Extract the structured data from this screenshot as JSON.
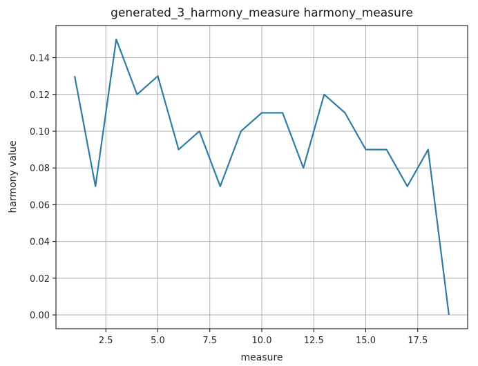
{
  "chart_data": {
    "type": "line",
    "title": "generated_3_harmony_measure harmony_measure",
    "xlabel": "measure",
    "ylabel": "harmony value",
    "x": [
      1,
      2,
      3,
      4,
      5,
      6,
      7,
      8,
      9,
      10,
      11,
      12,
      13,
      14,
      15,
      16,
      17,
      18,
      19
    ],
    "series": [
      {
        "values": [
          0.13,
          0.07,
          0.15,
          0.12,
          0.13,
          0.09,
          0.1,
          0.07,
          0.1,
          0.11,
          0.11,
          0.08,
          0.12,
          0.11,
          0.09,
          0.09,
          0.07,
          0.09,
          0.0
        ],
        "color": "#2e7ca6"
      }
    ],
    "xlim": [
      0.1,
      19.9
    ],
    "ylim": [
      -0.0075,
      0.1575
    ],
    "xticks": [
      2.5,
      5.0,
      7.5,
      10.0,
      12.5,
      15.0,
      17.5
    ],
    "xtick_labels": [
      "2.5",
      "5.0",
      "7.5",
      "10.0",
      "12.5",
      "15.0",
      "17.5"
    ],
    "yticks": [
      0.0,
      0.02,
      0.04,
      0.06,
      0.08,
      0.1,
      0.12,
      0.14
    ],
    "ytick_labels": [
      "0.00",
      "0.02",
      "0.04",
      "0.06",
      "0.08",
      "0.10",
      "0.12",
      "0.14"
    ],
    "grid": true,
    "legend": false
  }
}
